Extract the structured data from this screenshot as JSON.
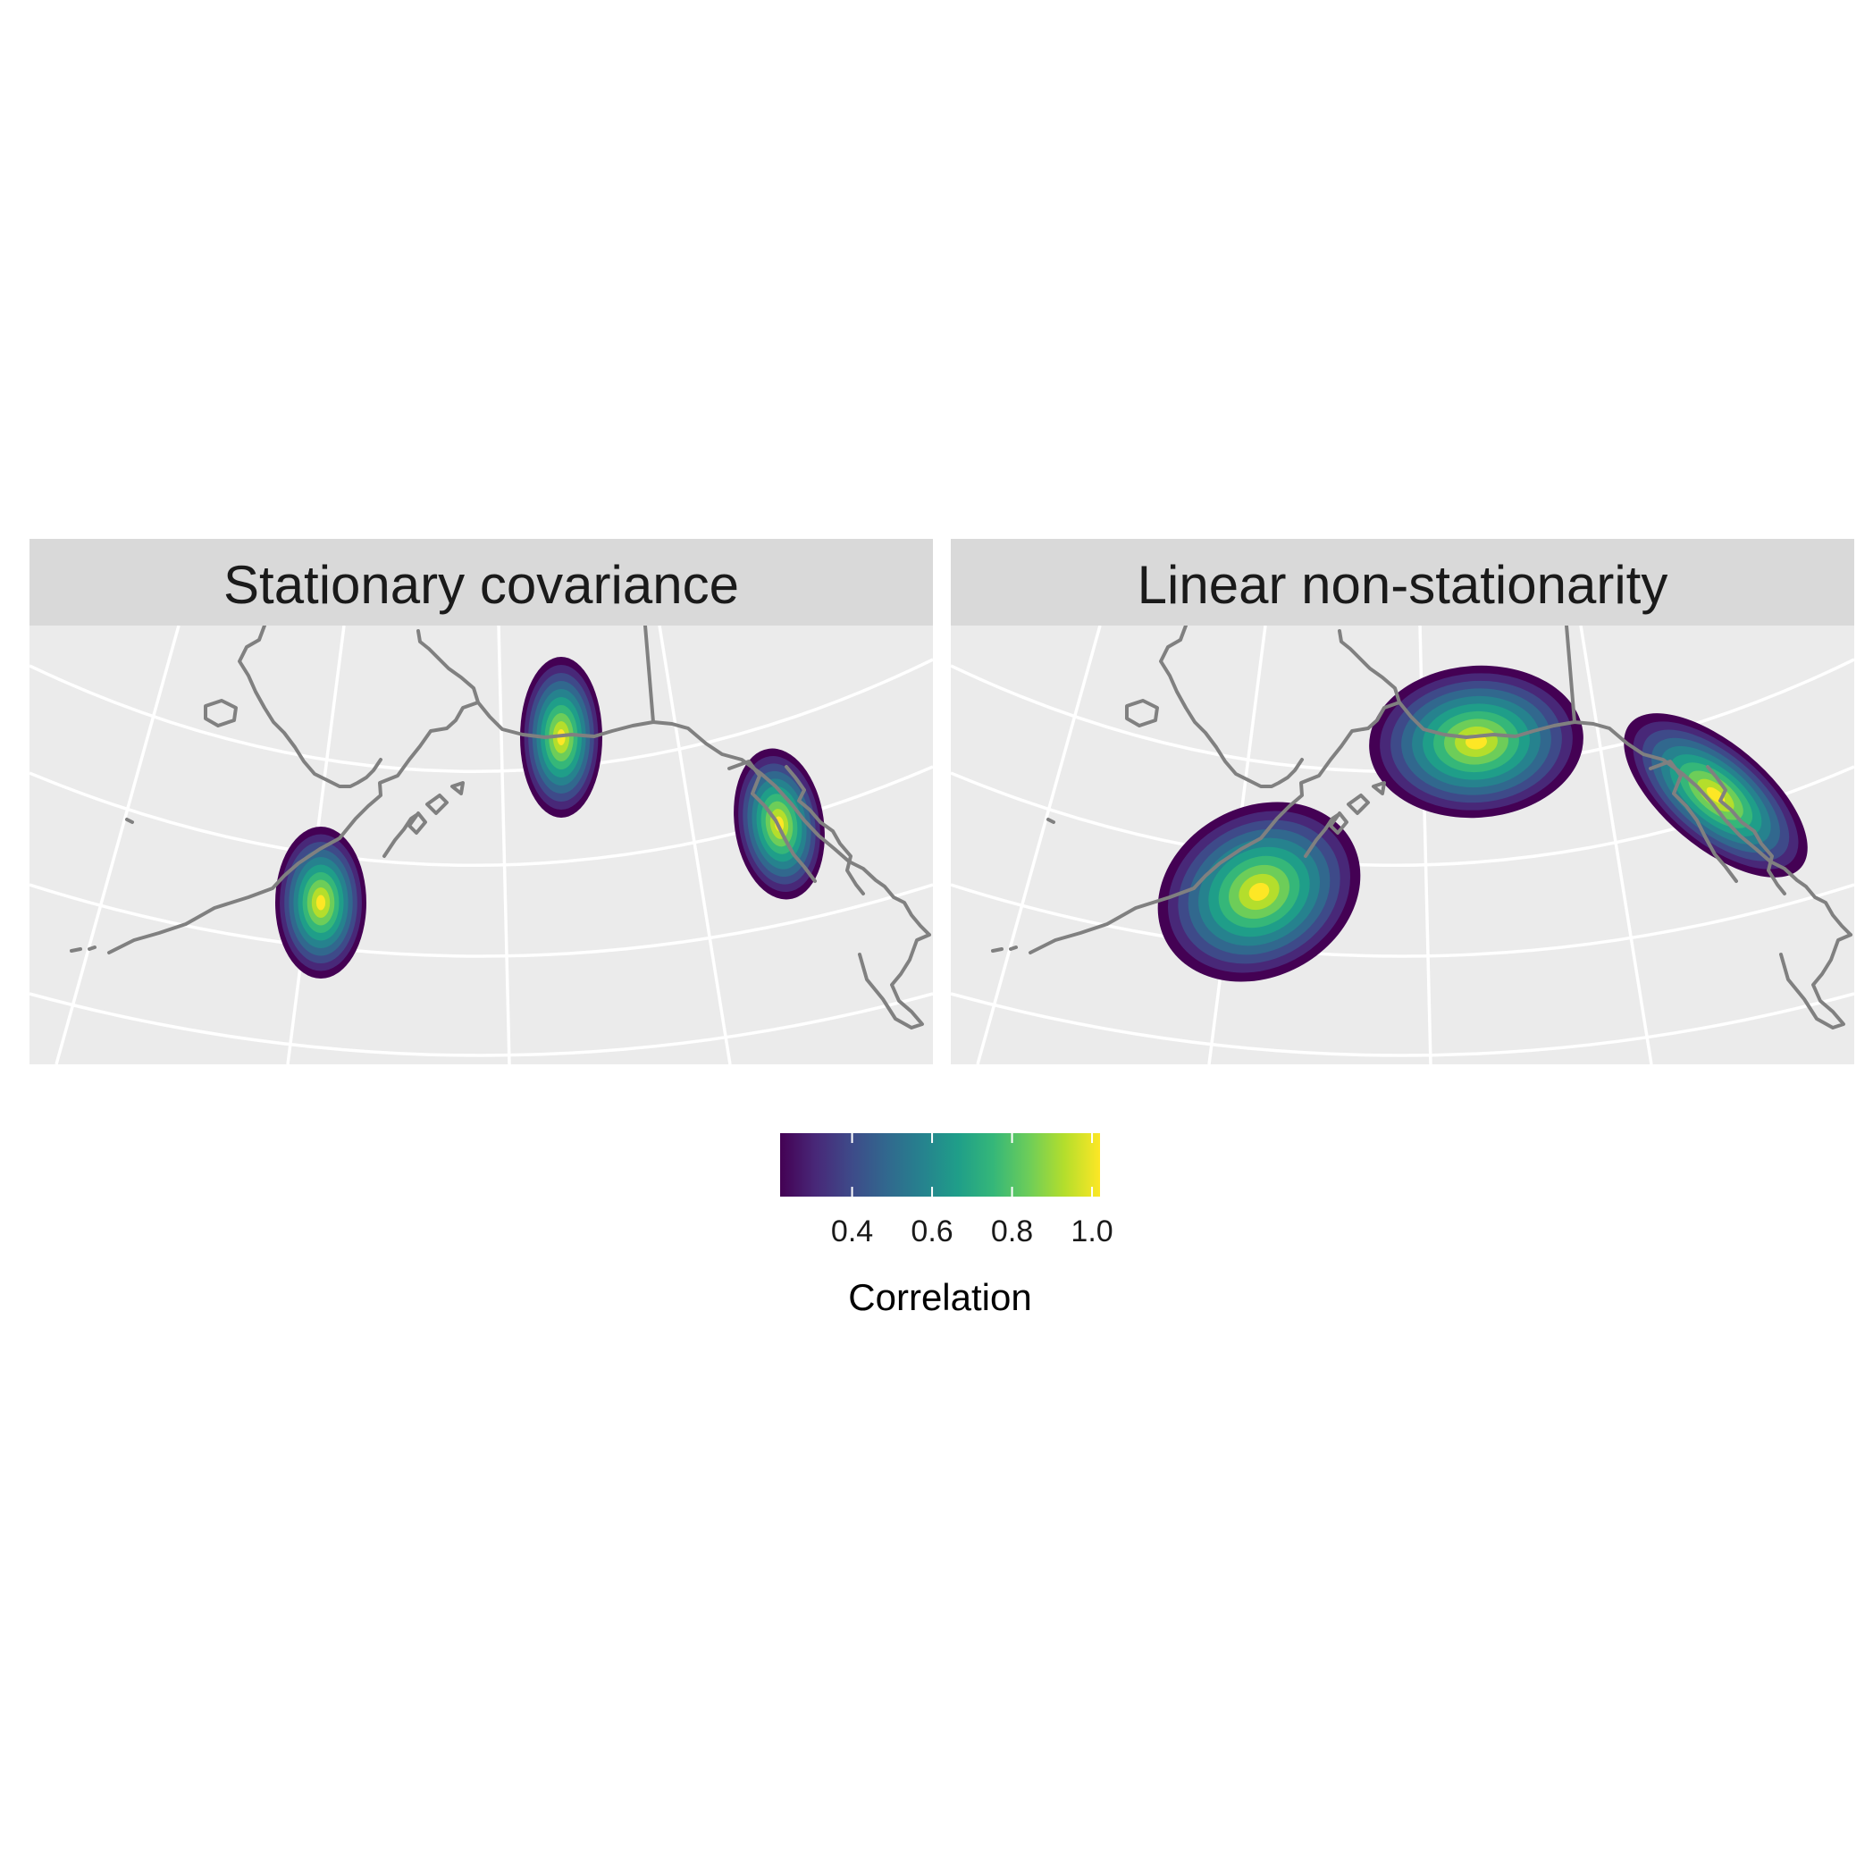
{
  "panels": [
    {
      "title": "Stationary covariance",
      "scale_factor": 1.0
    },
    {
      "title": "Linear non-stationarity",
      "scale_factor": 1.7
    }
  ],
  "legend": {
    "title": "Correlation",
    "min": 0.22,
    "max": 1.02,
    "ticks": [
      {
        "value": 0.4,
        "label": "0.4"
      },
      {
        "value": 0.6,
        "label": "0.6"
      },
      {
        "value": 0.8,
        "label": "0.8"
      },
      {
        "value": 1.0,
        "label": "1.0"
      }
    ],
    "palette": [
      "#440154",
      "#482878",
      "#3E4A89",
      "#31688E",
      "#26828E",
      "#1F9E89",
      "#35B779",
      "#6DCD59",
      "#B4DE2C",
      "#FDE725"
    ]
  },
  "colors": {
    "panel_bg": "#EBEBEB",
    "strip_bg": "#D9D9D9",
    "grid": "#FFFFFF",
    "coastline": "#808080"
  }
}
